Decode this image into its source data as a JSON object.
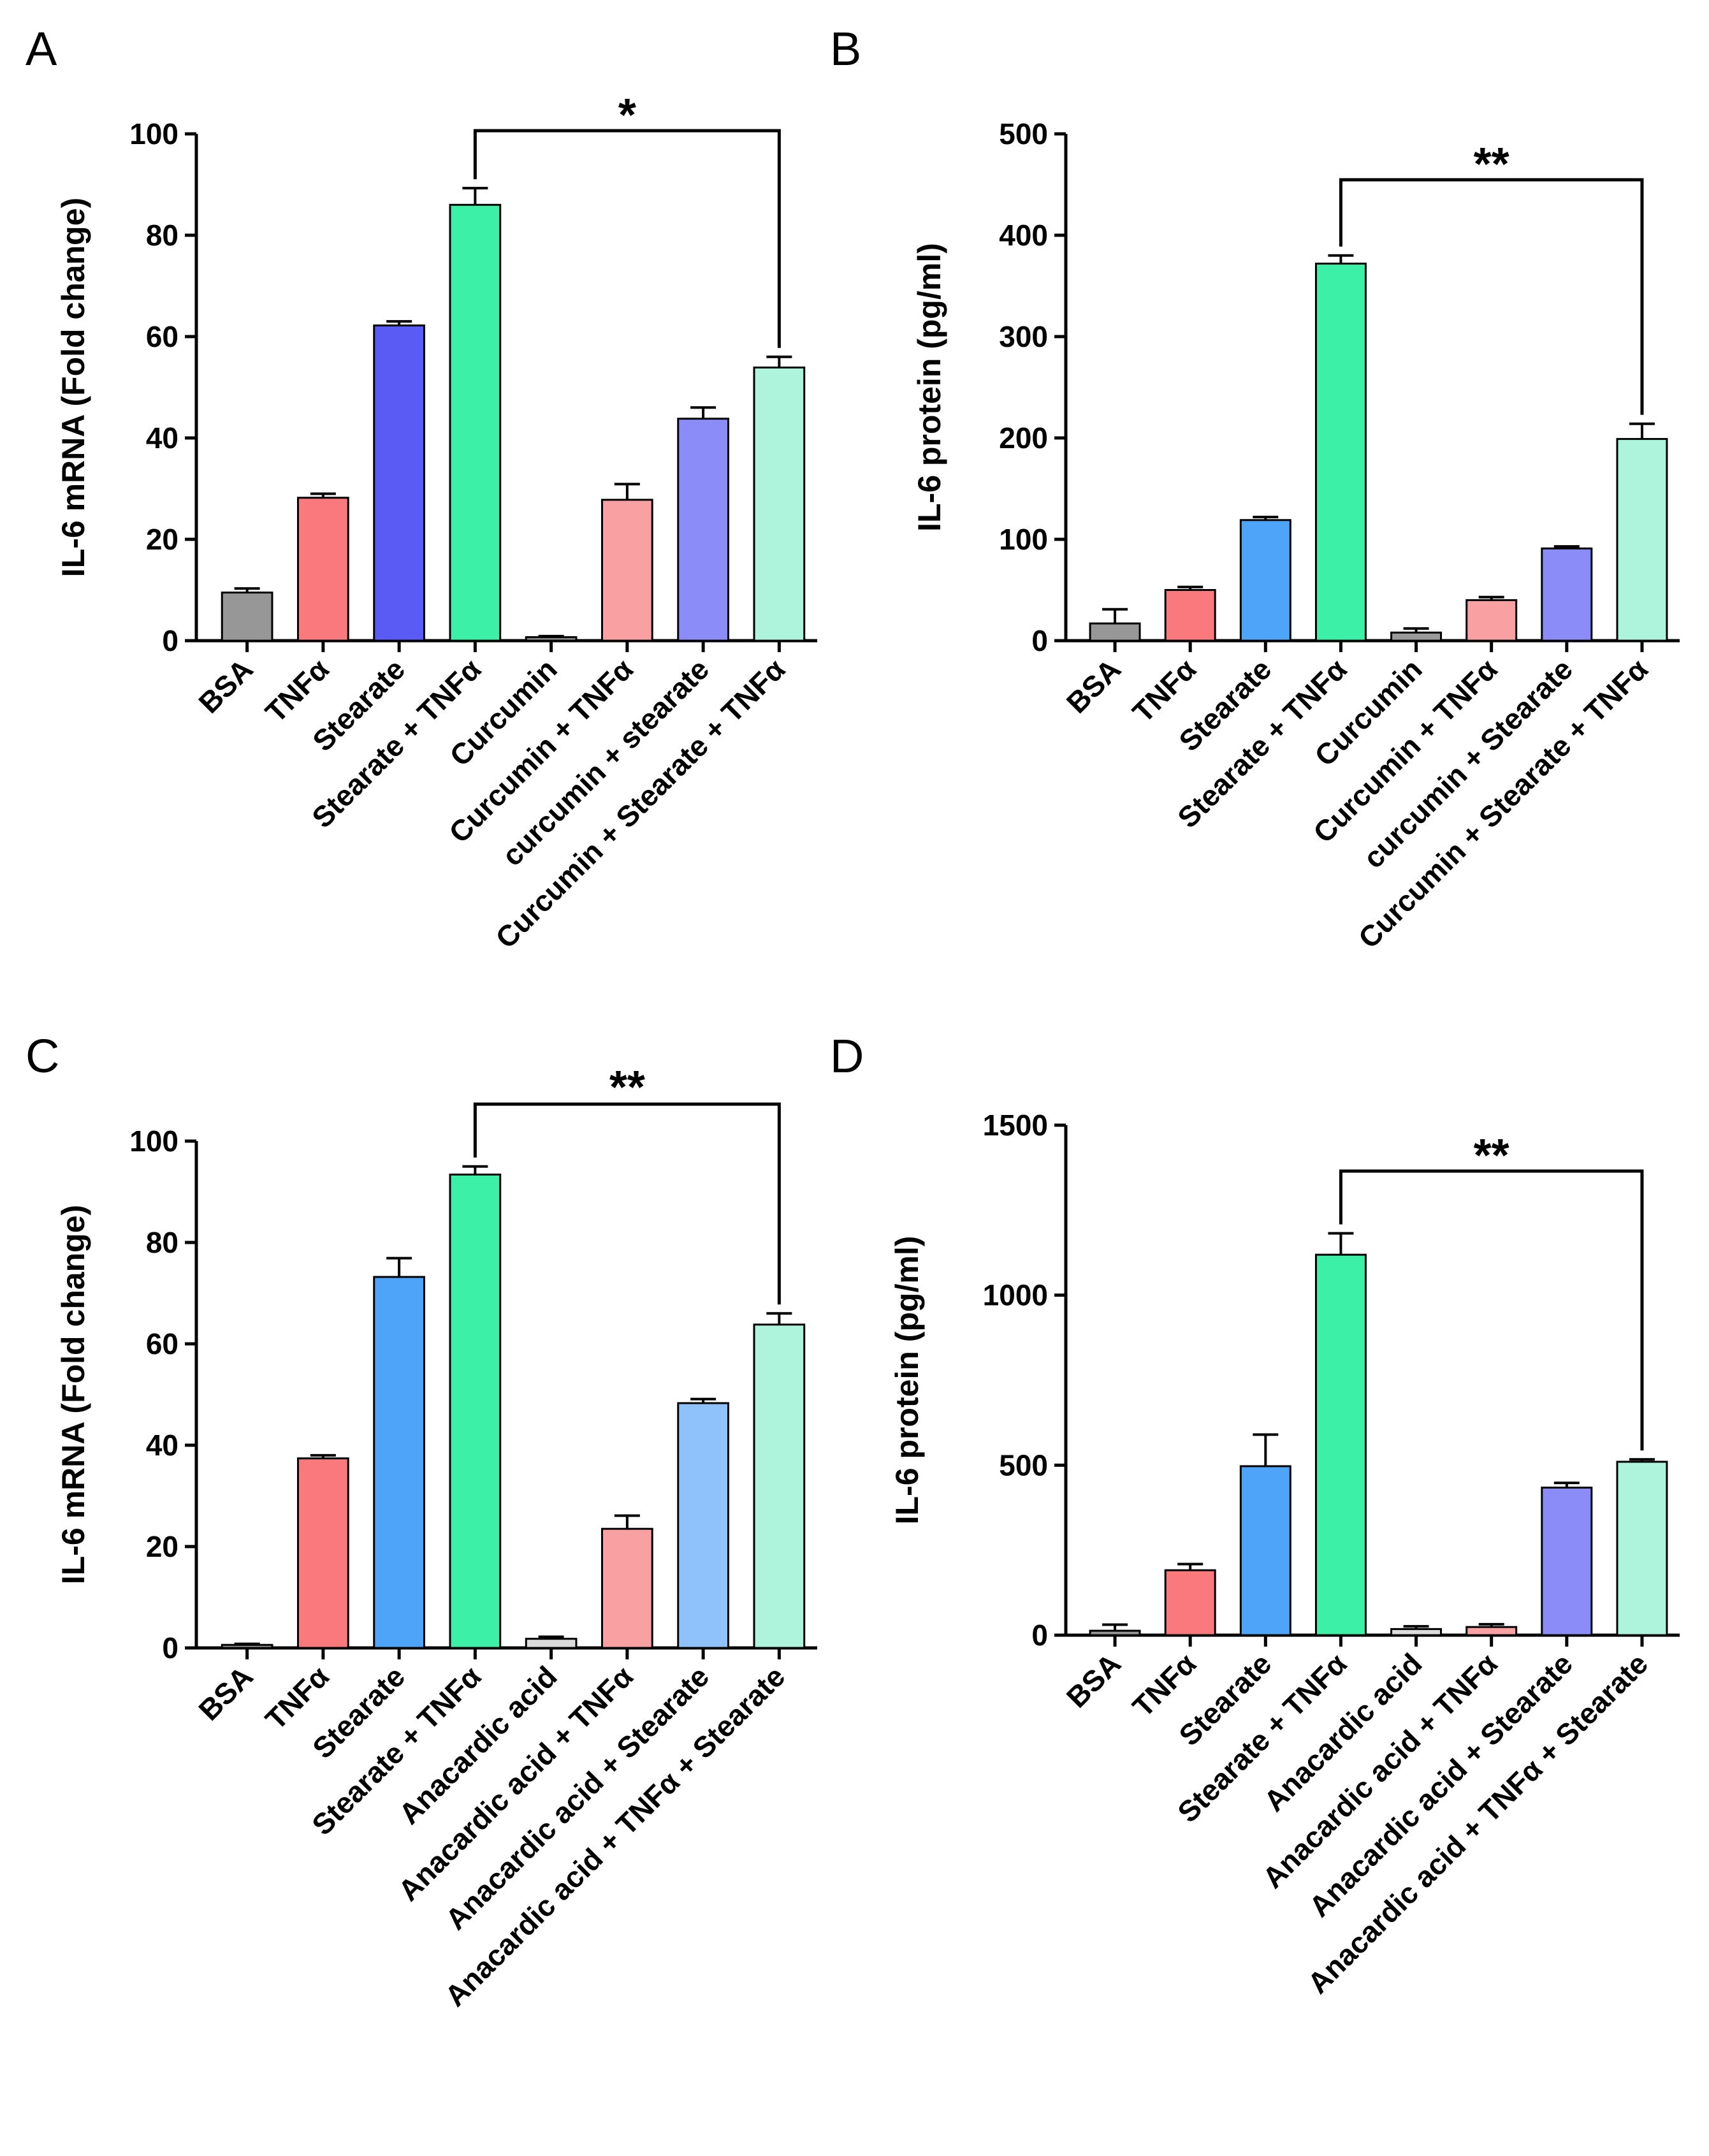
{
  "figure": {
    "panels": [
      "A",
      "B",
      "C",
      "D"
    ]
  },
  "chart_data": [
    {
      "panel": "A",
      "type": "bar",
      "ylabel": "IL-6 mRNA  (Fold change)",
      "ylim": [
        0,
        100
      ],
      "yticks": [
        0,
        20,
        40,
        60,
        80,
        100
      ],
      "categories": [
        "BSA",
        "TNFα",
        "Stearate",
        "Stearate + TNFα",
        "Curcumin",
        "Curcumin + TNFα",
        "curcumin + stearate",
        "Curcumin + Stearate + TNFα"
      ],
      "values": [
        9.5,
        28.2,
        62.2,
        86.0,
        0.7,
        27.8,
        43.8,
        53.9
      ],
      "errors": [
        0.8,
        0.8,
        0.8,
        3.3,
        0.2,
        3.1,
        2.2,
        2.1
      ],
      "colors": [
        "#979797",
        "#f9797d",
        "#5a5af5",
        "#3cf0a8",
        "#8b8b8b",
        "#f8a0a2",
        "#8c8cf8",
        "#aef4dc"
      ],
      "significance": {
        "from": 3,
        "to": 7,
        "label": "*"
      }
    },
    {
      "panel": "B",
      "type": "bar",
      "ylabel": "IL-6 protein (pg/ml)",
      "ylim": [
        0,
        500
      ],
      "yticks": [
        0,
        100,
        200,
        300,
        400,
        500
      ],
      "categories": [
        "BSA",
        "TNFα",
        "Stearate",
        "Stearate + TNFα",
        "Curcumin",
        "Curcumin + TNFα",
        "curcumin + Stearate",
        "Curcumin + Stearate + TNFα"
      ],
      "values": [
        17,
        50,
        119,
        372,
        8,
        40,
        91,
        199
      ],
      "errors": [
        14,
        3,
        3,
        8,
        4,
        3,
        2,
        15
      ],
      "colors": [
        "#979797",
        "#f9797d",
        "#4ea4f8",
        "#3cf0a8",
        "#9a9a9a",
        "#f8a0a2",
        "#8c8cf8",
        "#aef4dc"
      ],
      "significance": {
        "from": 3,
        "to": 7,
        "label": "**"
      }
    },
    {
      "panel": "C",
      "type": "bar",
      "ylabel": "IL-6 mRNA  (Fold change)",
      "ylim": [
        0,
        100
      ],
      "yticks": [
        0,
        20,
        40,
        60,
        80,
        100
      ],
      "categories": [
        "BSA",
        "TNFα",
        "Stearate",
        "Stearate  + TNFα",
        "Anacardic acid",
        "Anacardic acid + TNFα",
        "Anacardic acid + Stearate",
        "Anacardic acid + TNFα + Stearate"
      ],
      "values": [
        0.6,
        37.4,
        73.2,
        93.4,
        1.8,
        23.5,
        48.3,
        63.8
      ],
      "errors": [
        0.2,
        0.6,
        3.7,
        1.6,
        0.4,
        2.6,
        0.8,
        2.2
      ],
      "colors": [
        "#979797",
        "#f9797d",
        "#4ea4f8",
        "#3cf0a8",
        "#dcdcdc",
        "#f8a0a2",
        "#8fc2fa",
        "#aef4dc"
      ],
      "significance": {
        "from": 3,
        "to": 7,
        "label": "**"
      }
    },
    {
      "panel": "D",
      "type": "bar",
      "ylabel": "IL-6 protein (pg/ml)",
      "ylim": [
        0,
        1500
      ],
      "yticks": [
        0,
        500,
        1000,
        1500
      ],
      "categories": [
        "BSA",
        "TNFα",
        "Stearate",
        "Stearate  + TNFα",
        "Anacardic acid",
        "Anacardic acid + TNFα",
        "Anacardic acid + Stearate",
        "Anacardic acid + TNFα + Stearate"
      ],
      "values": [
        13,
        191,
        497,
        1119,
        18,
        24,
        434,
        510
      ],
      "errors": [
        18,
        18,
        93,
        63,
        8,
        8,
        14,
        7
      ],
      "colors": [
        "#979797",
        "#f9797d",
        "#4ea4f8",
        "#3cf0a8",
        "#dcdcdc",
        "#f8a0a2",
        "#8c8cf8",
        "#aef4dc"
      ],
      "significance": {
        "from": 3,
        "to": 7,
        "label": "**"
      }
    }
  ]
}
